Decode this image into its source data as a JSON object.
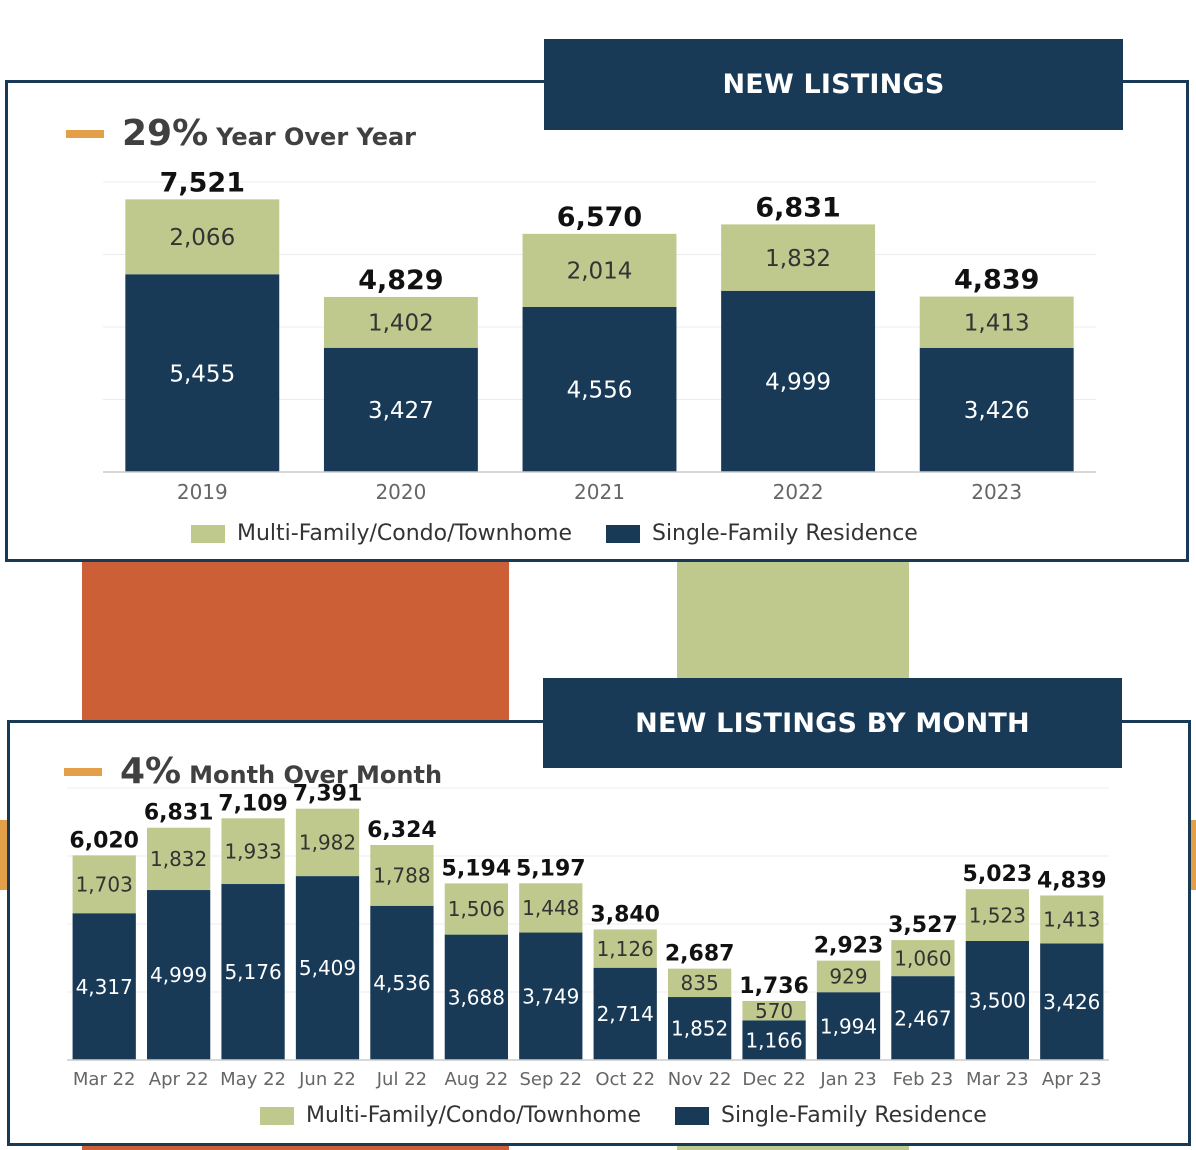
{
  "colors": {
    "navy": "#183a57",
    "sage": "#bfc98d",
    "orange_accent": "#e3a048",
    "rust": "#cc5f35"
  },
  "panel1": {
    "banner": "NEW LISTINGS",
    "kpi_value": "29%",
    "kpi_label": "Year Over Year"
  },
  "panel2": {
    "banner": "NEW LISTINGS BY MONTH",
    "kpi_value": "4%",
    "kpi_label": "Month Over Month"
  },
  "chart_data": [
    {
      "type": "bar",
      "stacked": true,
      "categories": [
        "2019",
        "2020",
        "2021",
        "2022",
        "2023"
      ],
      "series": [
        {
          "name": "Single-Family Residence",
          "color": "#183a57",
          "values": [
            5455,
            3427,
            4556,
            4999,
            3426
          ]
        },
        {
          "name": "Multi-Family/Condo/Townhome",
          "color": "#bfc98d",
          "values": [
            2066,
            1402,
            2014,
            1832,
            1413
          ]
        }
      ],
      "value_labels": {
        "bottom": [
          "5,455",
          "3,427",
          "4,556",
          "4,999",
          "3,426"
        ],
        "top": [
          "2,066",
          "1,402",
          "2,014",
          "1,832",
          "1,413"
        ]
      },
      "totals": [
        "7,521",
        "4,829",
        "6,570",
        "6,831",
        "4,839"
      ],
      "total_values": [
        7521,
        4829,
        6570,
        6831,
        4839
      ],
      "legend": [
        "Multi-Family/Condo/Townhome",
        "Single-Family Residence"
      ],
      "ylim": [
        0,
        8000
      ],
      "grid": true,
      "legend_position": "bottom"
    },
    {
      "type": "bar",
      "stacked": true,
      "categories": [
        "Mar 22",
        "Apr 22",
        "May 22",
        "Jun 22",
        "Jul 22",
        "Aug 22",
        "Sep 22",
        "Oct 22",
        "Nov 22",
        "Dec 22",
        "Jan 23",
        "Feb 23",
        "Mar 23",
        "Apr 23"
      ],
      "series": [
        {
          "name": "Single-Family Residence",
          "color": "#183a57",
          "values": [
            4317,
            4999,
            5176,
            5409,
            4536,
            3688,
            3749,
            2714,
            1852,
            1166,
            1994,
            2467,
            3500,
            3426
          ]
        },
        {
          "name": "Multi-Family/Condo/Townhome",
          "color": "#bfc98d",
          "values": [
            1703,
            1832,
            1933,
            1982,
            1788,
            1506,
            1448,
            1126,
            835,
            570,
            929,
            1060,
            1523,
            1413
          ]
        }
      ],
      "value_labels": {
        "bottom": [
          "4,317",
          "4,999",
          "5,176",
          "5,409",
          "4,536",
          "3,688",
          "3,749",
          "2,714",
          "1,852",
          "1,166",
          "1,994",
          "2,467",
          "3,500",
          "3,426"
        ],
        "top": [
          "1,703",
          "1,832",
          "1,933",
          "1,982",
          "1,788",
          "1,506",
          "1,448",
          "1,126",
          "835",
          "570",
          "929",
          "1,060",
          "1,523",
          "1,413"
        ]
      },
      "totals": [
        "6,020",
        "6,831",
        "7,109",
        "7,391",
        "6,324",
        "5,194",
        "5,197",
        "3,840",
        "2,687",
        "1,736",
        "2,923",
        "3,527",
        "5,023",
        "4,839"
      ],
      "total_values": [
        6020,
        6831,
        7109,
        7391,
        6324,
        5194,
        5197,
        3840,
        2687,
        1736,
        2923,
        3527,
        5023,
        4839
      ],
      "legend": [
        "Multi-Family/Condo/Townhome",
        "Single-Family Residence"
      ],
      "ylim": [
        0,
        8000
      ],
      "grid": true,
      "legend_position": "bottom"
    }
  ]
}
